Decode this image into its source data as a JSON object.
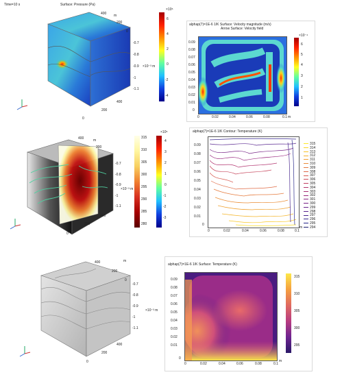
{
  "row1": {
    "left": {
      "time_label": "Time=10 s",
      "title": "Surface: Pressure (Pa)",
      "unit_top": "m",
      "unit_z": "m",
      "z_exp": "×10⁻³ m",
      "y_ticks": [
        "400",
        "200",
        "0"
      ],
      "z_ticks": [
        "-0.7",
        "-0.8",
        "-0.9",
        "-1",
        "-1.1"
      ],
      "x_ticks": [
        "400",
        "200",
        "0"
      ],
      "colorbar_exp": "×10⁵",
      "colorbar_ticks": [
        "6",
        "4",
        "2",
        "0",
        "-2",
        "-4"
      ]
    },
    "right": {
      "line1": "alphap(7)=1E-6 1/K   Surface: Velocity magnitude (m/s)",
      "line2": "Arrow Surface: Velocity field",
      "y_ticks": [
        "0.09",
        "0.08",
        "0.07",
        "0.06",
        "0.05",
        "0.04",
        "0.03",
        "0.02",
        "0.01",
        "0"
      ],
      "x_ticks": [
        "0",
        "0.02",
        "0.04",
        "0.06",
        "0.08",
        "0.1"
      ],
      "x_unit": "m",
      "colorbar_exp": "×10⁻⁴",
      "colorbar_ticks": [
        "6",
        "5",
        "4",
        "3",
        "2",
        "1"
      ]
    }
  },
  "row2": {
    "left": {
      "y_ticks": [
        "400",
        "200",
        "0"
      ],
      "z_ticks": [
        "-0.7",
        "-0.8",
        "-0.9",
        "-1",
        "-1.1"
      ],
      "x_ticks": [
        "400",
        "200",
        "0"
      ],
      "unit_top": "m",
      "z_exp": "×10⁻³ m",
      "colorbar1_ticks": [
        "315",
        "310",
        "305",
        "300",
        "295",
        "290",
        "285",
        "280"
      ],
      "colorbar2_exp": "×10⁵",
      "colorbar2_ticks": [
        "4",
        "3",
        "2",
        "1",
        "0",
        "-1",
        "-2",
        "-3"
      ]
    },
    "right": {
      "line1": "alphap(7)=1E-6 1/K      Contour: Temperature (K)",
      "y_ticks": [
        "0.09",
        "0.08",
        "0.07",
        "0.06",
        "0.05",
        "0.04",
        "0.03",
        "0.02",
        "0.01",
        "0"
      ],
      "x_ticks": [
        "0",
        "0.02",
        "0.04",
        "0.06",
        "0.08",
        "0.1"
      ],
      "x_unit": "m",
      "legend": [
        "315",
        "314",
        "313",
        "312",
        "311",
        "310",
        "309",
        "308",
        "307",
        "306",
        "305",
        "304",
        "303",
        "302",
        "301",
        "300",
        "299",
        "298",
        "297",
        "296",
        "295",
        "294"
      ],
      "legend_colors": [
        "#fde725",
        "#fbd524",
        "#f8c324",
        "#f4b02a",
        "#f09d31",
        "#eb8a38",
        "#e5783f",
        "#de6747",
        "#d5584f",
        "#cb4a57",
        "#c03e60",
        "#b33369",
        "#a52b72",
        "#97257a",
        "#882181",
        "#781f86",
        "#681f8a",
        "#57208c",
        "#46228c",
        "#35238b",
        "#242388",
        "#1a1a6e"
      ]
    }
  },
  "row3": {
    "left": {
      "y_ticks": [
        "400",
        "200",
        "0"
      ],
      "z_ticks": [
        "-0.7",
        "-0.8",
        "-0.9",
        "-1",
        "-1.1"
      ],
      "x_ticks": [
        "400",
        "200",
        "0"
      ],
      "unit_top": "m",
      "z_exp": "×10⁻³ m"
    },
    "right": {
      "line1": "alphap(7)=1E-6 1/K      Surface: Temperature (K)",
      "y_ticks": [
        "0.09",
        "0.08",
        "0.07",
        "0.06",
        "0.05",
        "0.04",
        "0.03",
        "0.02",
        "0.01",
        "0"
      ],
      "x_ticks": [
        "0",
        "0.02",
        "0.04",
        "0.06",
        "0.08",
        "0.1"
      ],
      "x_unit": "m",
      "colorbar_ticks": [
        "315",
        "310",
        "305",
        "300",
        "295"
      ]
    }
  },
  "triad_labels": [
    "z",
    "y",
    "x"
  ]
}
